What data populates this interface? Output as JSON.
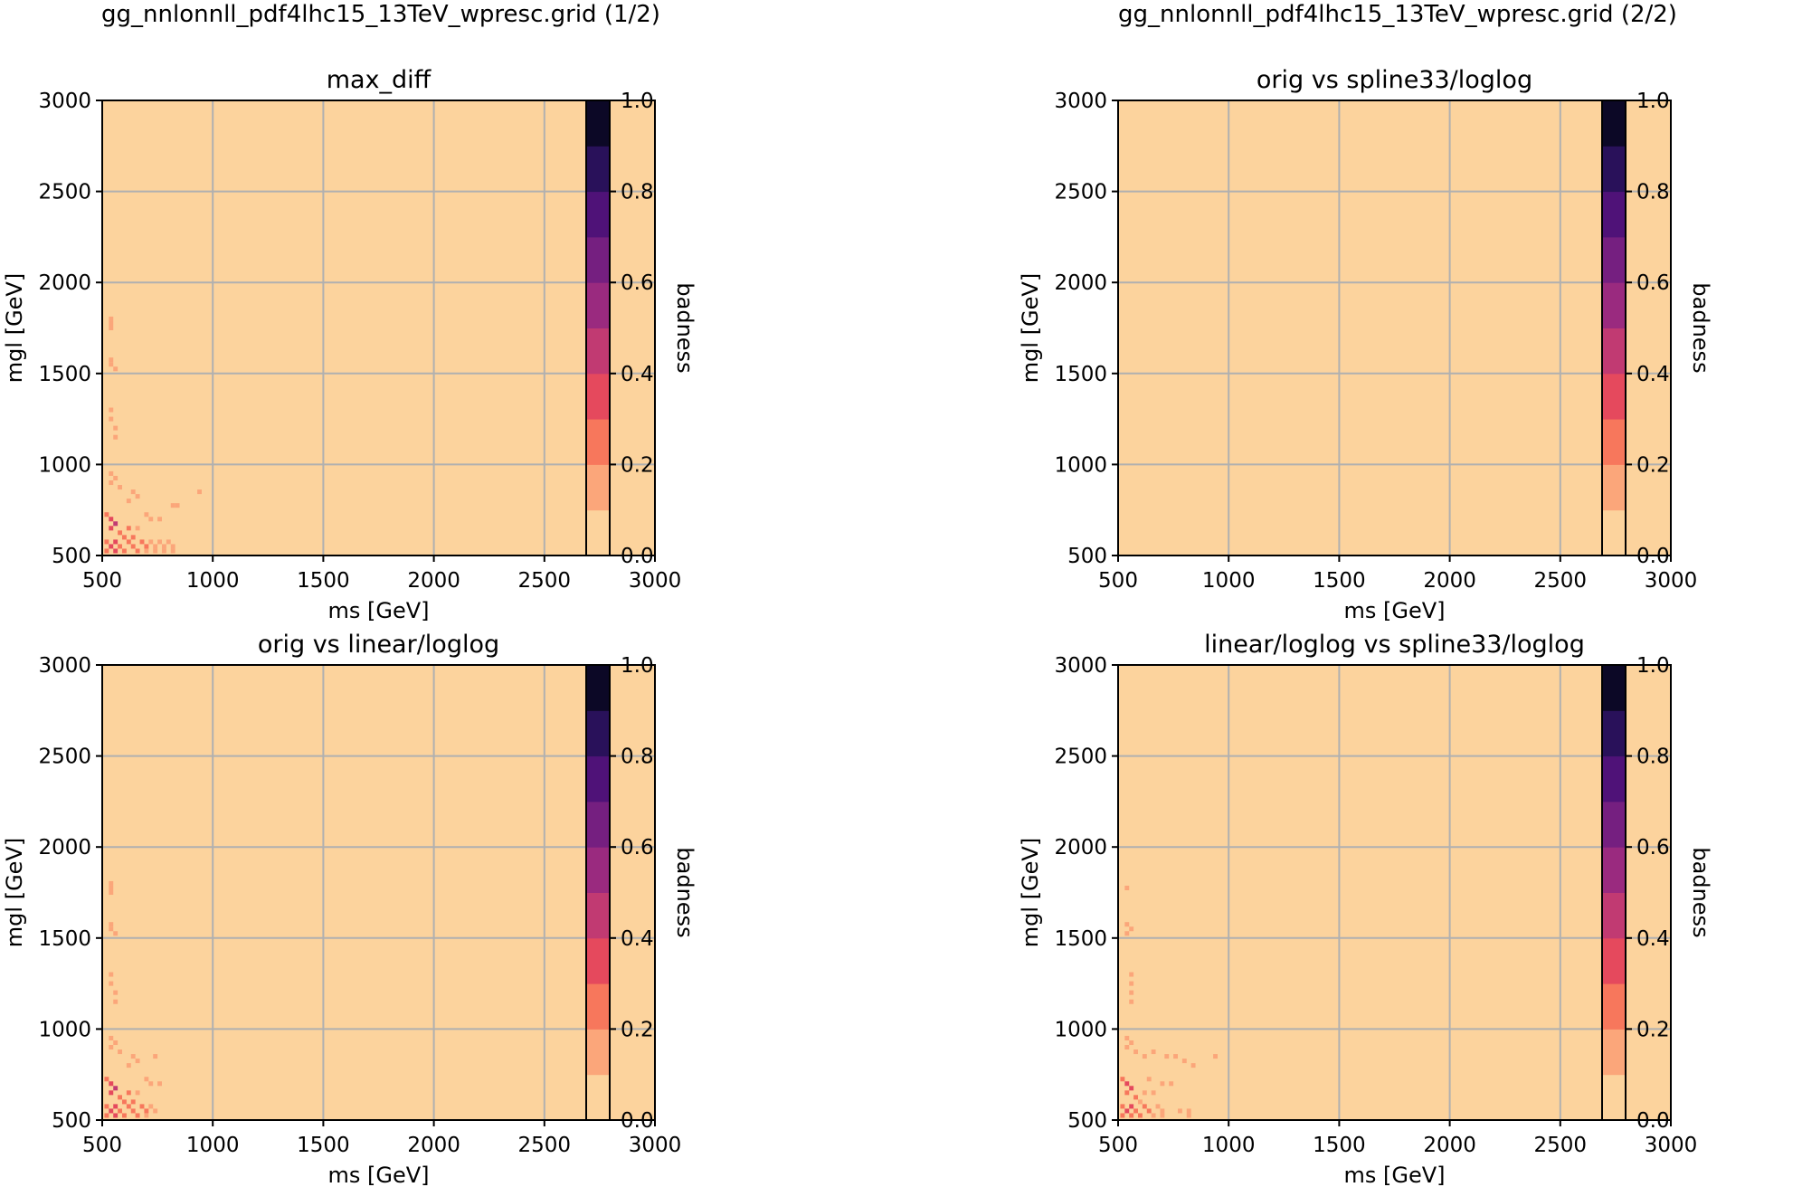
{
  "figure_titles": {
    "left": "gg_nnlonnll_pdf4lhc15_13TeV_wpresc.grid (1/2)",
    "right": "gg_nnlonnll_pdf4lhc15_13TeV_wpresc.grid (2/2)"
  },
  "colors": {
    "background": "#fcd39d",
    "grid": "#b0b0b0",
    "colormap_levels": [
      "#fcd39d",
      "#fba67a",
      "#f7775c",
      "#e5495d",
      "#c13a72",
      "#9a2a7f",
      "#751f80",
      "#4f1278",
      "#29115a",
      "#0c0826"
    ]
  },
  "chart_data": [
    {
      "type": "heatmap",
      "title": "max_diff",
      "xlabel": "ms [GeV]",
      "ylabel": "mgl [GeV]",
      "xlim": [
        500,
        3000
      ],
      "ylim": [
        500,
        3000
      ],
      "xticks": [
        "500",
        "1000",
        "1500",
        "2000",
        "2500",
        "3000"
      ],
      "yticks": [
        "500",
        "1000",
        "1500",
        "2000",
        "2500",
        "3000"
      ],
      "grid": true,
      "colorbar": {
        "label": "badness",
        "range": [
          0.0,
          1.0
        ],
        "levels": 10,
        "ticks": [
          "0.0",
          "0.2",
          "0.4",
          "0.6",
          "0.8",
          "1.0"
        ]
      },
      "background_value": 0.05,
      "cells": [
        {
          "ms": 540,
          "mgl": 1800,
          "value": 0.15
        },
        {
          "ms": 540,
          "mgl": 1775,
          "value": 0.15
        },
        {
          "ms": 540,
          "mgl": 1750,
          "value": 0.15
        },
        {
          "ms": 540,
          "mgl": 1575,
          "value": 0.15
        },
        {
          "ms": 540,
          "mgl": 1550,
          "value": 0.15
        },
        {
          "ms": 560,
          "mgl": 1525,
          "value": 0.15
        },
        {
          "ms": 540,
          "mgl": 1300,
          "value": 0.15
        },
        {
          "ms": 540,
          "mgl": 1250,
          "value": 0.15
        },
        {
          "ms": 560,
          "mgl": 1200,
          "value": 0.15
        },
        {
          "ms": 560,
          "mgl": 1150,
          "value": 0.15
        },
        {
          "ms": 540,
          "mgl": 950,
          "value": 0.15
        },
        {
          "ms": 560,
          "mgl": 925,
          "value": 0.15
        },
        {
          "ms": 540,
          "mgl": 900,
          "value": 0.15
        },
        {
          "ms": 580,
          "mgl": 875,
          "value": 0.15
        },
        {
          "ms": 640,
          "mgl": 850,
          "value": 0.15
        },
        {
          "ms": 940,
          "mgl": 850,
          "value": 0.15
        },
        {
          "ms": 660,
          "mgl": 825,
          "value": 0.15
        },
        {
          "ms": 620,
          "mgl": 800,
          "value": 0.15
        },
        {
          "ms": 820,
          "mgl": 775,
          "value": 0.15
        },
        {
          "ms": 840,
          "mgl": 775,
          "value": 0.15
        },
        {
          "ms": 520,
          "mgl": 725,
          "value": 0.25
        },
        {
          "ms": 540,
          "mgl": 700,
          "value": 0.35
        },
        {
          "ms": 560,
          "mgl": 675,
          "value": 0.45
        },
        {
          "ms": 540,
          "mgl": 650,
          "value": 0.35
        },
        {
          "ms": 700,
          "mgl": 725,
          "value": 0.15
        },
        {
          "ms": 720,
          "mgl": 700,
          "value": 0.15
        },
        {
          "ms": 760,
          "mgl": 700,
          "value": 0.15
        },
        {
          "ms": 620,
          "mgl": 650,
          "value": 0.25
        },
        {
          "ms": 660,
          "mgl": 650,
          "value": 0.15
        },
        {
          "ms": 580,
          "mgl": 625,
          "value": 0.25
        },
        {
          "ms": 600,
          "mgl": 600,
          "value": 0.25
        },
        {
          "ms": 640,
          "mgl": 600,
          "value": 0.25
        },
        {
          "ms": 520,
          "mgl": 575,
          "value": 0.25
        },
        {
          "ms": 560,
          "mgl": 575,
          "value": 0.35
        },
        {
          "ms": 620,
          "mgl": 575,
          "value": 0.25
        },
        {
          "ms": 680,
          "mgl": 575,
          "value": 0.25
        },
        {
          "ms": 720,
          "mgl": 575,
          "value": 0.15
        },
        {
          "ms": 760,
          "mgl": 575,
          "value": 0.15
        },
        {
          "ms": 800,
          "mgl": 575,
          "value": 0.15
        },
        {
          "ms": 540,
          "mgl": 550,
          "value": 0.35
        },
        {
          "ms": 580,
          "mgl": 550,
          "value": 0.25
        },
        {
          "ms": 640,
          "mgl": 550,
          "value": 0.25
        },
        {
          "ms": 700,
          "mgl": 550,
          "value": 0.25
        },
        {
          "ms": 740,
          "mgl": 550,
          "value": 0.15
        },
        {
          "ms": 780,
          "mgl": 550,
          "value": 0.15
        },
        {
          "ms": 820,
          "mgl": 550,
          "value": 0.15
        },
        {
          "ms": 520,
          "mgl": 525,
          "value": 0.25
        },
        {
          "ms": 560,
          "mgl": 525,
          "value": 0.35
        },
        {
          "ms": 600,
          "mgl": 525,
          "value": 0.25
        },
        {
          "ms": 660,
          "mgl": 525,
          "value": 0.25
        },
        {
          "ms": 700,
          "mgl": 525,
          "value": 0.15
        },
        {
          "ms": 740,
          "mgl": 525,
          "value": 0.15
        },
        {
          "ms": 780,
          "mgl": 525,
          "value": 0.15
        },
        {
          "ms": 820,
          "mgl": 525,
          "value": 0.15
        }
      ]
    },
    {
      "type": "heatmap",
      "title": "orig vs spline33/loglog",
      "xlabel": "ms [GeV]",
      "ylabel": "mgl [GeV]",
      "xlim": [
        500,
        3000
      ],
      "ylim": [
        500,
        3000
      ],
      "xticks": [
        "500",
        "1000",
        "1500",
        "2000",
        "2500",
        "3000"
      ],
      "yticks": [
        "500",
        "1000",
        "1500",
        "2000",
        "2500",
        "3000"
      ],
      "grid": true,
      "colorbar": {
        "label": "badness",
        "range": [
          0.0,
          1.0
        ],
        "levels": 10,
        "ticks": [
          "0.0",
          "0.2",
          "0.4",
          "0.6",
          "0.8",
          "1.0"
        ]
      },
      "background_value": 0.05,
      "cells": []
    },
    {
      "type": "heatmap",
      "title": "orig vs linear/loglog",
      "xlabel": "ms [GeV]",
      "ylabel": "mgl [GeV]",
      "xlim": [
        500,
        3000
      ],
      "ylim": [
        500,
        3000
      ],
      "xticks": [
        "500",
        "1000",
        "1500",
        "2000",
        "2500",
        "3000"
      ],
      "yticks": [
        "500",
        "1000",
        "1500",
        "2000",
        "2500",
        "3000"
      ],
      "grid": true,
      "colorbar": {
        "label": "badness",
        "range": [
          0.0,
          1.0
        ],
        "levels": 10,
        "ticks": [
          "0.0",
          "0.2",
          "0.4",
          "0.6",
          "0.8",
          "1.0"
        ]
      },
      "background_value": 0.05,
      "cells": [
        {
          "ms": 540,
          "mgl": 1800,
          "value": 0.15
        },
        {
          "ms": 540,
          "mgl": 1775,
          "value": 0.15
        },
        {
          "ms": 540,
          "mgl": 1750,
          "value": 0.15
        },
        {
          "ms": 540,
          "mgl": 1575,
          "value": 0.15
        },
        {
          "ms": 540,
          "mgl": 1550,
          "value": 0.15
        },
        {
          "ms": 560,
          "mgl": 1525,
          "value": 0.15
        },
        {
          "ms": 540,
          "mgl": 1300,
          "value": 0.15
        },
        {
          "ms": 540,
          "mgl": 1250,
          "value": 0.15
        },
        {
          "ms": 560,
          "mgl": 1200,
          "value": 0.15
        },
        {
          "ms": 560,
          "mgl": 1150,
          "value": 0.15
        },
        {
          "ms": 540,
          "mgl": 950,
          "value": 0.15
        },
        {
          "ms": 560,
          "mgl": 925,
          "value": 0.15
        },
        {
          "ms": 540,
          "mgl": 900,
          "value": 0.15
        },
        {
          "ms": 580,
          "mgl": 875,
          "value": 0.15
        },
        {
          "ms": 640,
          "mgl": 850,
          "value": 0.15
        },
        {
          "ms": 740,
          "mgl": 850,
          "value": 0.15
        },
        {
          "ms": 660,
          "mgl": 825,
          "value": 0.15
        },
        {
          "ms": 620,
          "mgl": 800,
          "value": 0.15
        },
        {
          "ms": 520,
          "mgl": 725,
          "value": 0.25
        },
        {
          "ms": 540,
          "mgl": 700,
          "value": 0.35
        },
        {
          "ms": 560,
          "mgl": 675,
          "value": 0.45
        },
        {
          "ms": 540,
          "mgl": 650,
          "value": 0.35
        },
        {
          "ms": 700,
          "mgl": 725,
          "value": 0.15
        },
        {
          "ms": 720,
          "mgl": 700,
          "value": 0.15
        },
        {
          "ms": 760,
          "mgl": 700,
          "value": 0.15
        },
        {
          "ms": 620,
          "mgl": 650,
          "value": 0.25
        },
        {
          "ms": 660,
          "mgl": 650,
          "value": 0.15
        },
        {
          "ms": 580,
          "mgl": 625,
          "value": 0.25
        },
        {
          "ms": 600,
          "mgl": 600,
          "value": 0.25
        },
        {
          "ms": 640,
          "mgl": 600,
          "value": 0.25
        },
        {
          "ms": 520,
          "mgl": 575,
          "value": 0.25
        },
        {
          "ms": 560,
          "mgl": 575,
          "value": 0.35
        },
        {
          "ms": 620,
          "mgl": 575,
          "value": 0.25
        },
        {
          "ms": 680,
          "mgl": 575,
          "value": 0.25
        },
        {
          "ms": 720,
          "mgl": 575,
          "value": 0.15
        },
        {
          "ms": 540,
          "mgl": 550,
          "value": 0.35
        },
        {
          "ms": 580,
          "mgl": 550,
          "value": 0.25
        },
        {
          "ms": 640,
          "mgl": 550,
          "value": 0.25
        },
        {
          "ms": 700,
          "mgl": 550,
          "value": 0.25
        },
        {
          "ms": 740,
          "mgl": 550,
          "value": 0.15
        },
        {
          "ms": 520,
          "mgl": 525,
          "value": 0.25
        },
        {
          "ms": 560,
          "mgl": 525,
          "value": 0.35
        },
        {
          "ms": 600,
          "mgl": 525,
          "value": 0.25
        },
        {
          "ms": 660,
          "mgl": 525,
          "value": 0.25
        },
        {
          "ms": 700,
          "mgl": 525,
          "value": 0.15
        }
      ]
    },
    {
      "type": "heatmap",
      "title": "linear/loglog vs spline33/loglog",
      "xlabel": "ms [GeV]",
      "ylabel": "mgl [GeV]",
      "xlim": [
        500,
        3000
      ],
      "ylim": [
        500,
        3000
      ],
      "xticks": [
        "500",
        "1000",
        "1500",
        "2000",
        "2500",
        "3000"
      ],
      "yticks": [
        "500",
        "1000",
        "1500",
        "2000",
        "2500",
        "3000"
      ],
      "grid": true,
      "colorbar": {
        "label": "badness",
        "range": [
          0.0,
          1.0
        ],
        "levels": 10,
        "ticks": [
          "0.0",
          "0.2",
          "0.4",
          "0.6",
          "0.8",
          "1.0"
        ]
      },
      "background_value": 0.05,
      "cells": [
        {
          "ms": 540,
          "mgl": 1775,
          "value": 0.15
        },
        {
          "ms": 540,
          "mgl": 1575,
          "value": 0.15
        },
        {
          "ms": 560,
          "mgl": 1550,
          "value": 0.15
        },
        {
          "ms": 540,
          "mgl": 1525,
          "value": 0.15
        },
        {
          "ms": 560,
          "mgl": 1300,
          "value": 0.15
        },
        {
          "ms": 560,
          "mgl": 1250,
          "value": 0.15
        },
        {
          "ms": 560,
          "mgl": 1200,
          "value": 0.15
        },
        {
          "ms": 560,
          "mgl": 1150,
          "value": 0.15
        },
        {
          "ms": 540,
          "mgl": 950,
          "value": 0.15
        },
        {
          "ms": 560,
          "mgl": 925,
          "value": 0.15
        },
        {
          "ms": 540,
          "mgl": 900,
          "value": 0.15
        },
        {
          "ms": 580,
          "mgl": 875,
          "value": 0.15
        },
        {
          "ms": 620,
          "mgl": 850,
          "value": 0.15
        },
        {
          "ms": 660,
          "mgl": 875,
          "value": 0.15
        },
        {
          "ms": 720,
          "mgl": 850,
          "value": 0.15
        },
        {
          "ms": 760,
          "mgl": 850,
          "value": 0.15
        },
        {
          "ms": 800,
          "mgl": 825,
          "value": 0.15
        },
        {
          "ms": 940,
          "mgl": 850,
          "value": 0.15
        },
        {
          "ms": 840,
          "mgl": 800,
          "value": 0.15
        },
        {
          "ms": 520,
          "mgl": 725,
          "value": 0.25
        },
        {
          "ms": 540,
          "mgl": 700,
          "value": 0.35
        },
        {
          "ms": 560,
          "mgl": 675,
          "value": 0.35
        },
        {
          "ms": 540,
          "mgl": 650,
          "value": 0.25
        },
        {
          "ms": 640,
          "mgl": 725,
          "value": 0.15
        },
        {
          "ms": 700,
          "mgl": 700,
          "value": 0.15
        },
        {
          "ms": 740,
          "mgl": 700,
          "value": 0.15
        },
        {
          "ms": 620,
          "mgl": 650,
          "value": 0.15
        },
        {
          "ms": 660,
          "mgl": 650,
          "value": 0.15
        },
        {
          "ms": 580,
          "mgl": 625,
          "value": 0.25
        },
        {
          "ms": 600,
          "mgl": 600,
          "value": 0.15
        },
        {
          "ms": 520,
          "mgl": 575,
          "value": 0.25
        },
        {
          "ms": 560,
          "mgl": 575,
          "value": 0.35
        },
        {
          "ms": 620,
          "mgl": 575,
          "value": 0.25
        },
        {
          "ms": 680,
          "mgl": 575,
          "value": 0.15
        },
        {
          "ms": 540,
          "mgl": 550,
          "value": 0.35
        },
        {
          "ms": 580,
          "mgl": 550,
          "value": 0.25
        },
        {
          "ms": 640,
          "mgl": 550,
          "value": 0.25
        },
        {
          "ms": 700,
          "mgl": 550,
          "value": 0.15
        },
        {
          "ms": 780,
          "mgl": 550,
          "value": 0.15
        },
        {
          "ms": 820,
          "mgl": 550,
          "value": 0.15
        },
        {
          "ms": 520,
          "mgl": 525,
          "value": 0.25
        },
        {
          "ms": 560,
          "mgl": 525,
          "value": 0.25
        },
        {
          "ms": 600,
          "mgl": 525,
          "value": 0.25
        },
        {
          "ms": 660,
          "mgl": 525,
          "value": 0.15
        },
        {
          "ms": 700,
          "mgl": 525,
          "value": 0.15
        },
        {
          "ms": 820,
          "mgl": 525,
          "value": 0.15
        }
      ]
    }
  ]
}
